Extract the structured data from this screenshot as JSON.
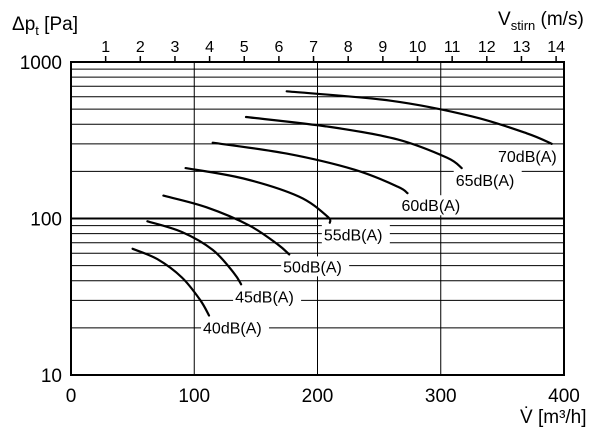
{
  "chart_data": {
    "type": "line",
    "y_axis": {
      "label_main": "Δp",
      "label_sub": "t",
      "label_unit": " [Pa]",
      "scale": "log",
      "ylim": [
        10,
        1000
      ],
      "ticks": [
        "10",
        "100",
        "1000"
      ]
    },
    "x_axis": {
      "label_symbol": "V̇",
      "label_unit": " [m³/h]",
      "xlim": [
        0,
        400
      ],
      "ticks": [
        "0",
        "100",
        "200",
        "300",
        "400"
      ]
    },
    "top_axis": {
      "label_main": "V",
      "label_sub": "stirn",
      "label_unit": " (m/s)",
      "ticks": [
        "1",
        "2",
        "3",
        "4",
        "5",
        "6",
        "7",
        "8",
        "9",
        "10",
        "11",
        "12",
        "13",
        "14"
      ],
      "ms_per_m3h": 0.03557
    },
    "grid": true,
    "series": [
      {
        "name": "40dB(A)",
        "x": [
          50,
          70,
          90,
          105,
          112
        ],
        "y": [
          64,
          55,
          42,
          30,
          24
        ]
      },
      {
        "name": "45dB(A)",
        "x": [
          62,
          90,
          115,
          132,
          138
        ],
        "y": [
          96,
          82,
          63,
          45,
          38
        ]
      },
      {
        "name": "50dB(A)",
        "x": [
          75,
          110,
          145,
          168,
          177
        ],
        "y": [
          140,
          118,
          90,
          68,
          59
        ]
      },
      {
        "name": "55dB(A)",
        "x": [
          93,
          140,
          185,
          208,
          210
        ],
        "y": [
          210,
          180,
          138,
          103,
          94
        ]
      },
      {
        "name": "60dB(A)",
        "x": [
          115,
          175,
          230,
          265,
          273
        ],
        "y": [
          305,
          260,
          205,
          160,
          145
        ]
      },
      {
        "name": "65dB(A)",
        "x": [
          142,
          210,
          265,
          305,
          317
        ],
        "y": [
          445,
          385,
          320,
          245,
          210
        ]
      },
      {
        "name": "70dB(A)",
        "x": [
          175,
          260,
          325,
          370,
          390
        ],
        "y": [
          650,
          565,
          450,
          350,
          300
        ]
      }
    ]
  }
}
